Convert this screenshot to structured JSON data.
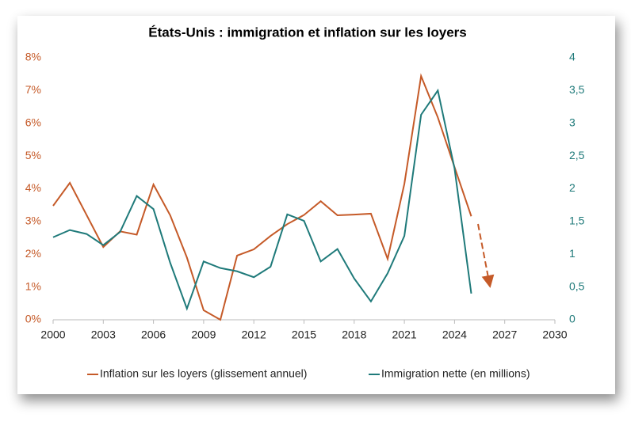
{
  "chart_data": {
    "type": "line",
    "title": "États-Unis : immigration et inflation sur les loyers",
    "x": [
      2000,
      2001,
      2002,
      2003,
      2004,
      2005,
      2006,
      2007,
      2008,
      2009,
      2010,
      2011,
      2012,
      2013,
      2014,
      2015,
      2016,
      2017,
      2018,
      2019,
      2020,
      2021,
      2022,
      2023,
      2024,
      2025
    ],
    "series": [
      {
        "name": "Inflation sur les loyers (glissement annuel)",
        "color": "#c55a28",
        "axis": "y",
        "values": [
          3.48,
          4.18,
          3.2,
          2.22,
          2.7,
          2.6,
          4.13,
          3.19,
          1.9,
          0.29,
          0.0,
          1.96,
          2.15,
          2.56,
          2.92,
          3.2,
          3.62,
          3.19,
          3.21,
          3.24,
          1.86,
          4.15,
          7.44,
          6.18,
          4.66,
          3.16
        ]
      },
      {
        "name": "Immigration nette (en millions)",
        "color": "#1f7a7a",
        "axis": "y2",
        "values": [
          1.26,
          1.37,
          1.31,
          1.14,
          1.34,
          1.89,
          1.69,
          0.87,
          0.17,
          0.89,
          0.79,
          0.74,
          0.65,
          0.81,
          1.61,
          1.51,
          0.89,
          1.08,
          0.63,
          0.28,
          0.71,
          1.28,
          3.13,
          3.5,
          2.31,
          0.4
        ]
      }
    ],
    "xlim": [
      2000,
      2030
    ],
    "xticks": [
      2000,
      2003,
      2006,
      2009,
      2012,
      2015,
      2018,
      2021,
      2024,
      2027,
      2030
    ],
    "ylim": [
      0,
      8
    ],
    "yticks": [
      {
        "value": 0,
        "label": "0%"
      },
      {
        "value": 1,
        "label": "1%"
      },
      {
        "value": 2,
        "label": "2%"
      },
      {
        "value": 3,
        "label": "3%"
      },
      {
        "value": 4,
        "label": "4%"
      },
      {
        "value": 5,
        "label": "5%"
      },
      {
        "value": 6,
        "label": "6%"
      },
      {
        "value": 7,
        "label": "7%"
      },
      {
        "value": 8,
        "label": "8%"
      }
    ],
    "y2lim": [
      0,
      4
    ],
    "y2ticks": [
      0,
      {
        "value": 0.5,
        "label": "0,5"
      },
      1,
      {
        "value": 1.5,
        "label": "1,5"
      },
      2,
      {
        "value": 2.5,
        "label": "2,5"
      },
      3,
      {
        "value": 3.5,
        "label": "3,5"
      },
      4
    ],
    "grid": false,
    "legend": "bottom"
  }
}
